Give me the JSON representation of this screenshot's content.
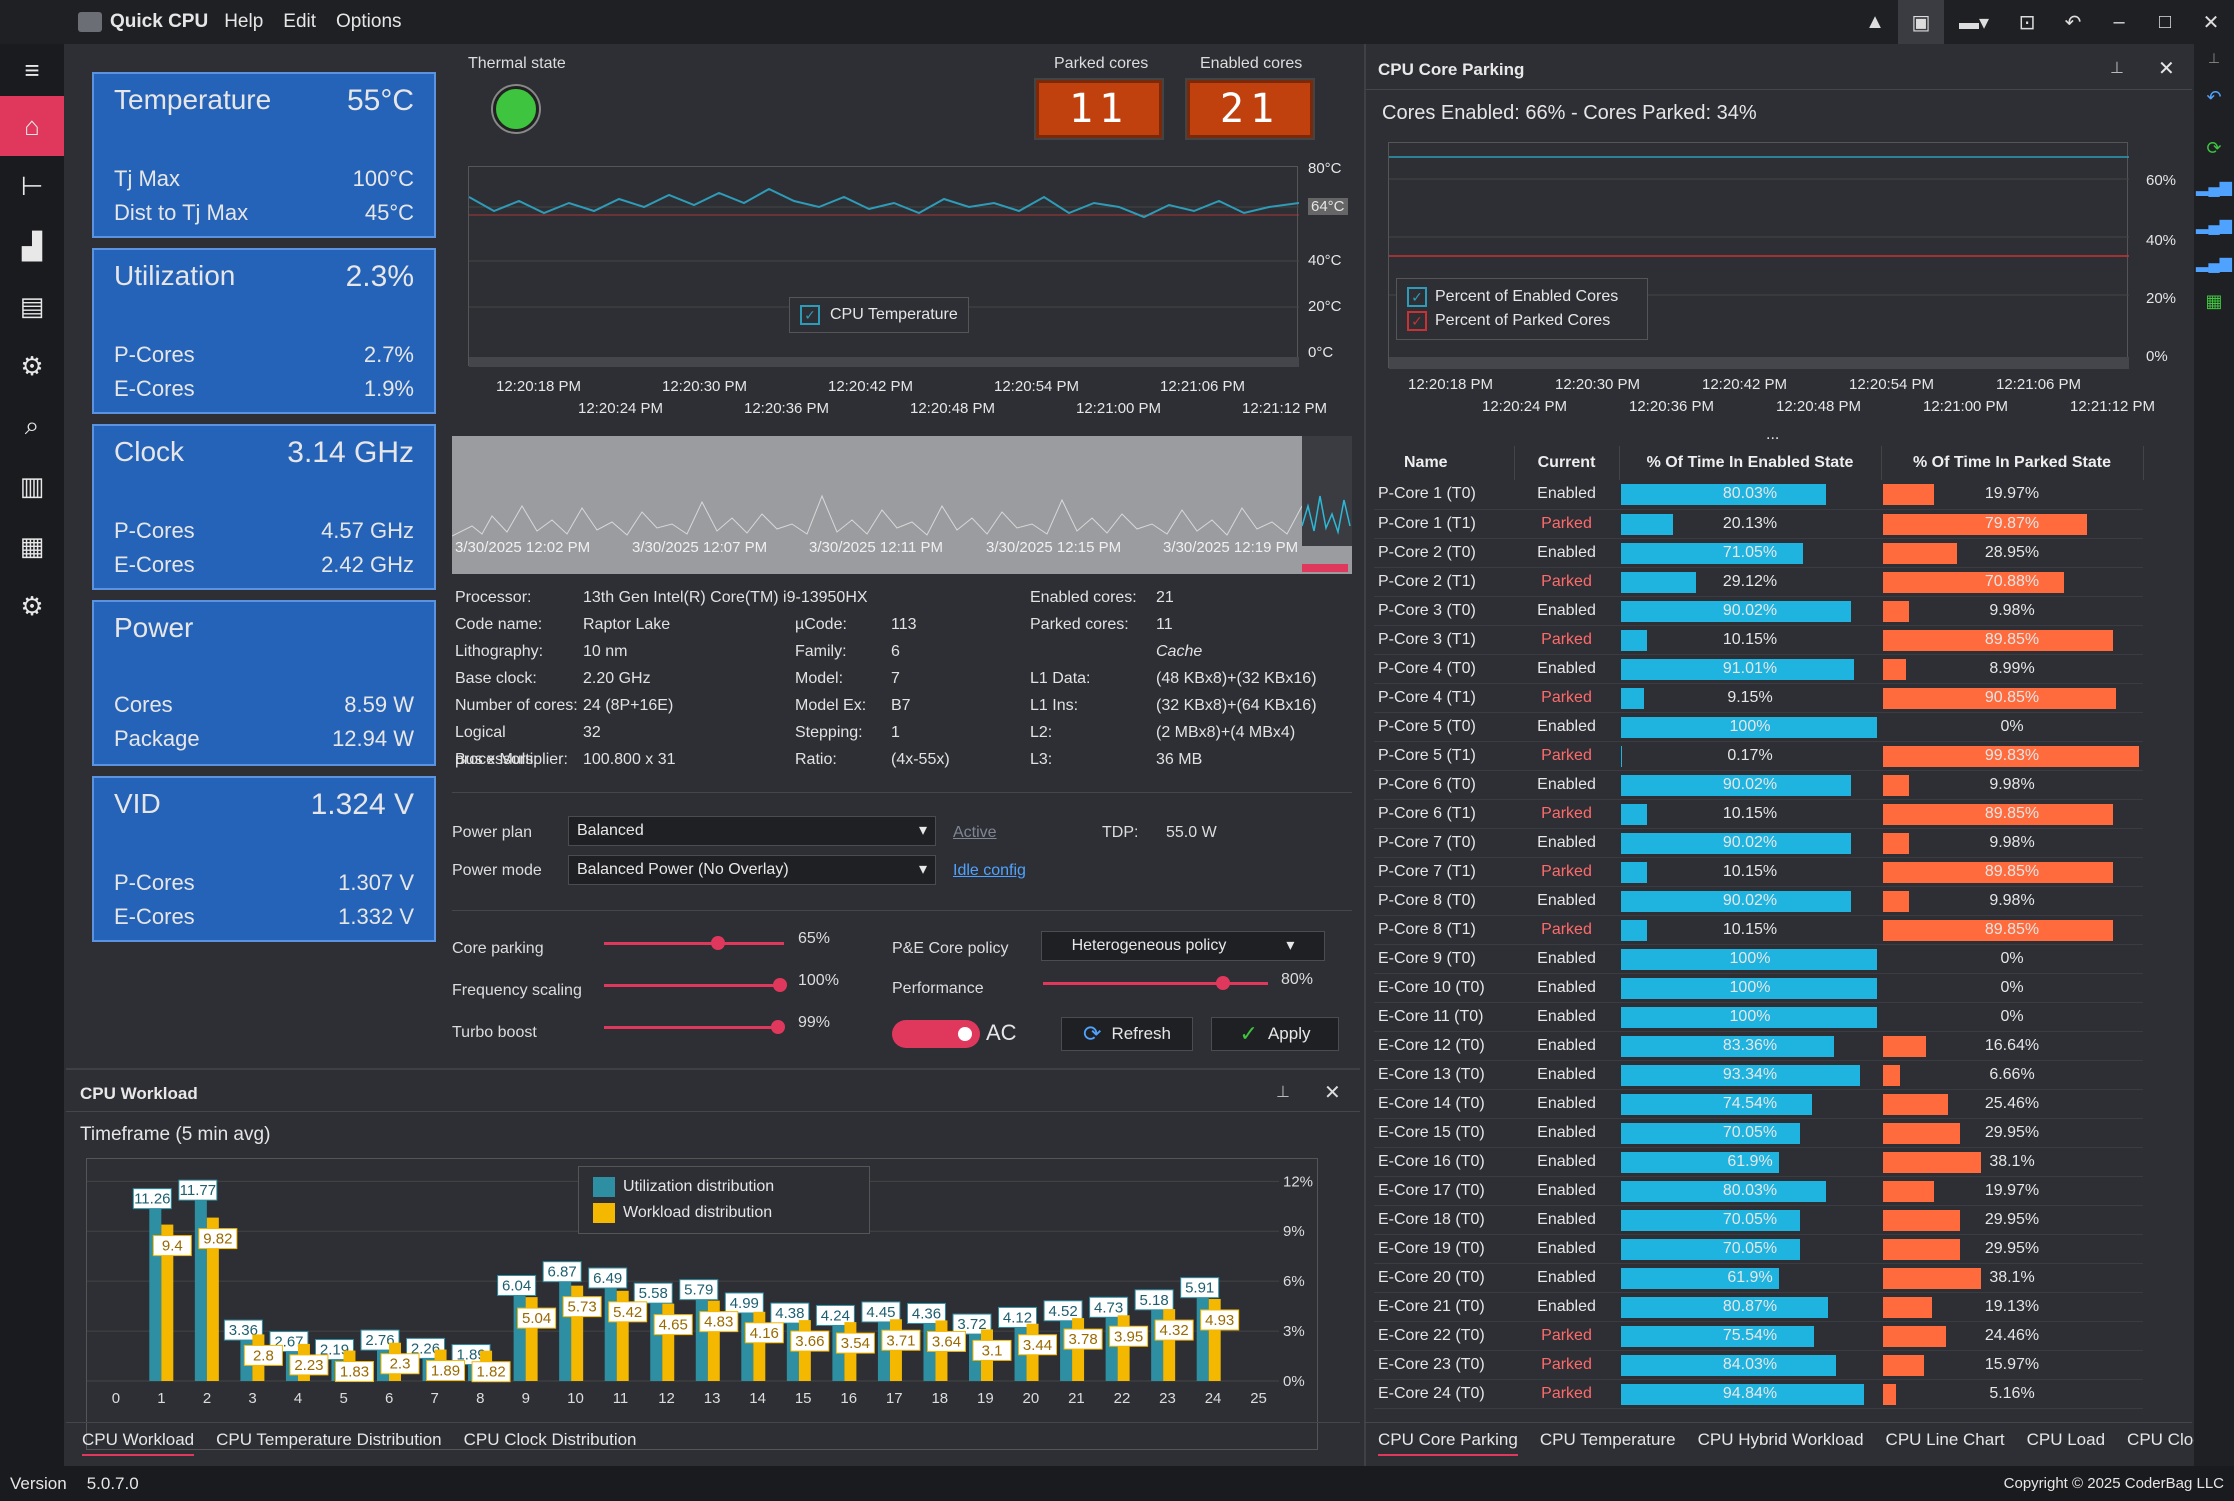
{
  "app": {
    "title": "Quick CPU",
    "menu": [
      "Help",
      "Edit",
      "Options"
    ]
  },
  "nav": [
    "home-icon",
    "tree-icon",
    "chart-icon",
    "bars-icon",
    "table-settings-icon",
    "inspect-icon",
    "book-icon",
    "dashboard-icon",
    "gear-icon"
  ],
  "cards": [
    {
      "title": "Temperature",
      "value": "55°C",
      "rows": [
        [
          "Tj Max",
          "100°C"
        ],
        [
          "Dist to Tj Max",
          "45°C"
        ]
      ]
    },
    {
      "title": "Utilization",
      "value": "2.3%",
      "rows": [
        [
          "P-Cores",
          "2.7%"
        ],
        [
          "E-Cores",
          "1.9%"
        ]
      ]
    },
    {
      "title": "Clock",
      "value": "3.14 GHz",
      "rows": [
        [
          "P-Cores",
          "4.57 GHz"
        ],
        [
          "E-Cores",
          "2.42 GHz"
        ]
      ]
    },
    {
      "title": "Power",
      "value": "",
      "rows": [
        [
          "Cores",
          "8.59 W"
        ],
        [
          "Package",
          "12.94 W"
        ]
      ]
    },
    {
      "title": "VID",
      "value": "1.324 V",
      "rows": [
        [
          "P-Cores",
          "1.307 V"
        ],
        [
          "E-Cores",
          "1.332 V"
        ]
      ]
    }
  ],
  "thermal": {
    "label": "Thermal state",
    "color": "#3ec43e"
  },
  "parked": {
    "label": "Parked cores",
    "value": "11"
  },
  "enabled": {
    "label": "Enabled cores",
    "value": "21"
  },
  "temp_chart": {
    "legend": "CPU Temperature",
    "yticks": [
      "80°C",
      "64°C",
      "40°C",
      "20°C",
      "0°C"
    ],
    "xticks_top": [
      "12:20:18 PM",
      "12:20:30 PM",
      "12:20:42 PM",
      "12:20:54 PM",
      "12:21:06 PM"
    ],
    "xticks_bottom": [
      "12:20:24 PM",
      "12:20:36 PM",
      "12:20:48 PM",
      "12:21:00 PM",
      "12:21:12 PM"
    ]
  },
  "history": {
    "ticks": [
      "3/30/2025 12:02 PM",
      "3/30/2025 12:07 PM",
      "3/30/2025 12:11 PM",
      "3/30/2025 12:15 PM",
      "3/30/2025 12:19 PM"
    ]
  },
  "info_left": [
    [
      "Processor:",
      "13th Gen Intel(R) Core(TM) i9-13950HX"
    ],
    [
      "Code name:",
      "Raptor Lake"
    ],
    [
      "Lithography:",
      "10 nm"
    ],
    [
      "Base clock:",
      "2.20 GHz"
    ],
    [
      "Number of cores:",
      "24 (8P+16E)"
    ],
    [
      "Logical processors:",
      "32"
    ],
    [
      "Bus x Multiplier:",
      "100.800 x 31"
    ]
  ],
  "info_mid": [
    [
      "µCode:",
      "113"
    ],
    [
      "Family:",
      "6"
    ],
    [
      "Model:",
      "7"
    ],
    [
      "Model Ex:",
      "B7"
    ],
    [
      "Stepping:",
      "1"
    ],
    [
      "Ratio:",
      "(4x-55x)"
    ]
  ],
  "info_right": [
    [
      "Enabled cores:",
      "21"
    ],
    [
      "Parked cores:",
      "11"
    ],
    [
      "",
      "Cache"
    ],
    [
      "L1 Data:",
      "(48 KBx8)+(32 KBx16)"
    ],
    [
      "L1 Ins:",
      "(32 KBx8)+(64 KBx16)"
    ],
    [
      "L2:",
      "(2 MBx8)+(4 MBx4)"
    ],
    [
      "L3:",
      "36 MB"
    ]
  ],
  "power": {
    "plan_label": "Power plan",
    "plan": "Balanced",
    "mode_label": "Power mode",
    "mode": "Balanced Power (No Overlay)",
    "active": "Active",
    "idle": "Idle config",
    "tdp_label": "TDP:",
    "tdp": "55.0 W"
  },
  "controls": {
    "core_parking": {
      "label": "Core parking",
      "value": "65%",
      "level": 0.65
    },
    "freq_scaling": {
      "label": "Frequency scaling",
      "value": "100%",
      "level": 1.0
    },
    "turbo": {
      "label": "Turbo boost",
      "value": "99%",
      "level": 0.99
    },
    "pe_label": "P&E Core policy",
    "pe_value": "Heterogeneous policy",
    "perf_label": "Performance",
    "perf_value": "80%",
    "perf_level": 0.8,
    "ac": "AC",
    "refresh": "Refresh",
    "apply": "Apply"
  },
  "workload": {
    "title": "CPU Workload",
    "timeframe": "Timeframe (5 min avg)",
    "legend": [
      "Utilization distribution",
      "Workload distribution"
    ],
    "colors": [
      "#2e8fa3",
      "#f5b800"
    ],
    "tabs": [
      "CPU Workload",
      "CPU Temperature Distribution",
      "CPU Clock Distribution"
    ]
  },
  "chart_data": {
    "type": "bar",
    "categories": [
      "0",
      "1",
      "2",
      "3",
      "4",
      "5",
      "6",
      "7",
      "8",
      "9",
      "10",
      "11",
      "12",
      "13",
      "14",
      "15",
      "16",
      "17",
      "18",
      "19",
      "20",
      "21",
      "22",
      "23",
      "24",
      "25"
    ],
    "series": [
      {
        "name": "Utilization distribution",
        "values": [
          null,
          11.26,
          11.77,
          3.36,
          2.67,
          2.19,
          2.76,
          2.26,
          1.89,
          6.04,
          6.87,
          6.49,
          5.58,
          5.79,
          4.99,
          4.38,
          4.24,
          4.45,
          4.36,
          3.72,
          4.12,
          4.52,
          4.73,
          5.18,
          5.91,
          null
        ]
      },
      {
        "name": "Workload distribution",
        "values": [
          null,
          9.4,
          9.82,
          2.8,
          2.23,
          1.83,
          2.3,
          1.89,
          1.82,
          5.04,
          5.73,
          5.42,
          4.65,
          4.83,
          4.16,
          3.66,
          3.54,
          3.71,
          3.64,
          3.1,
          3.44,
          3.78,
          3.95,
          4.32,
          4.93,
          null
        ]
      }
    ],
    "yticks": [
      "12%",
      "9%",
      "6%",
      "3%",
      "0%"
    ],
    "ylim": [
      0,
      12.5
    ]
  },
  "parking": {
    "title": "CPU Core Parking",
    "summary": "Cores Enabled: 66% - Cores Parked: 34%",
    "legend": [
      "Percent of Enabled Cores",
      "Percent of Parked Cores"
    ],
    "yticks": [
      "60%",
      "40%",
      "20%",
      "0%"
    ],
    "xticks_top": [
      "12:20:18 PM",
      "12:20:30 PM",
      "12:20:42 PM",
      "12:20:54 PM",
      "12:21:06 PM"
    ],
    "xticks_bottom": [
      "12:20:24 PM",
      "12:20:36 PM",
      "12:20:48 PM",
      "12:21:00 PM",
      "12:21:12 PM"
    ],
    "ellipsis": "...",
    "headers": [
      "Name",
      "Current",
      "% Of Time In Enabled State",
      "% Of Time In Parked State"
    ],
    "rows": [
      [
        "P-Core 1 (T0)",
        "Enabled",
        "80.03%",
        "19.97%"
      ],
      [
        "P-Core 1 (T1)",
        "Parked",
        "20.13%",
        "79.87%"
      ],
      [
        "P-Core 2 (T0)",
        "Enabled",
        "71.05%",
        "28.95%"
      ],
      [
        "P-Core 2 (T1)",
        "Parked",
        "29.12%",
        "70.88%"
      ],
      [
        "P-Core 3 (T0)",
        "Enabled",
        "90.02%",
        "9.98%"
      ],
      [
        "P-Core 3 (T1)",
        "Parked",
        "10.15%",
        "89.85%"
      ],
      [
        "P-Core 4 (T0)",
        "Enabled",
        "91.01%",
        "8.99%"
      ],
      [
        "P-Core 4 (T1)",
        "Parked",
        "9.15%",
        "90.85%"
      ],
      [
        "P-Core 5 (T0)",
        "Enabled",
        "100%",
        "0%"
      ],
      [
        "P-Core 5 (T1)",
        "Parked",
        "0.17%",
        "99.83%"
      ],
      [
        "P-Core 6 (T0)",
        "Enabled",
        "90.02%",
        "9.98%"
      ],
      [
        "P-Core 6 (T1)",
        "Parked",
        "10.15%",
        "89.85%"
      ],
      [
        "P-Core 7 (T0)",
        "Enabled",
        "90.02%",
        "9.98%"
      ],
      [
        "P-Core 7 (T1)",
        "Parked",
        "10.15%",
        "89.85%"
      ],
      [
        "P-Core 8 (T0)",
        "Enabled",
        "90.02%",
        "9.98%"
      ],
      [
        "P-Core 8 (T1)",
        "Parked",
        "10.15%",
        "89.85%"
      ],
      [
        "E-Core 9 (T0)",
        "Enabled",
        "100%",
        "0%"
      ],
      [
        "E-Core 10 (T0)",
        "Enabled",
        "100%",
        "0%"
      ],
      [
        "E-Core 11 (T0)",
        "Enabled",
        "100%",
        "0%"
      ],
      [
        "E-Core 12 (T0)",
        "Enabled",
        "83.36%",
        "16.64%"
      ],
      [
        "E-Core 13 (T0)",
        "Enabled",
        "93.34%",
        "6.66%"
      ],
      [
        "E-Core 14 (T0)",
        "Enabled",
        "74.54%",
        "25.46%"
      ],
      [
        "E-Core 15 (T0)",
        "Enabled",
        "70.05%",
        "29.95%"
      ],
      [
        "E-Core 16 (T0)",
        "Enabled",
        "61.9%",
        "38.1%"
      ],
      [
        "E-Core 17 (T0)",
        "Enabled",
        "80.03%",
        "19.97%"
      ],
      [
        "E-Core 18 (T0)",
        "Enabled",
        "70.05%",
        "29.95%"
      ],
      [
        "E-Core 19 (T0)",
        "Enabled",
        "70.05%",
        "29.95%"
      ],
      [
        "E-Core 20 (T0)",
        "Enabled",
        "61.9%",
        "38.1%"
      ],
      [
        "E-Core 21 (T0)",
        "Enabled",
        "80.87%",
        "19.13%"
      ],
      [
        "E-Core 22 (T0)",
        "Parked",
        "75.54%",
        "24.46%"
      ],
      [
        "E-Core 23 (T0)",
        "Parked",
        "84.03%",
        "15.97%"
      ],
      [
        "E-Core 24 (T0)",
        "Parked",
        "94.84%",
        "5.16%"
      ]
    ],
    "enabled_color": "#1fb3e0",
    "parked_color": "#ff6b3d",
    "tabs": [
      "CPU Core Parking",
      "CPU Temperature",
      "CPU Hybrid Workload",
      "CPU Line Chart",
      "CPU Load",
      "CPU Clock"
    ]
  },
  "status": {
    "version_label": "Version",
    "version": "5.0.7.0",
    "copyright": "Copyright © 2025 CoderBag LLC"
  }
}
